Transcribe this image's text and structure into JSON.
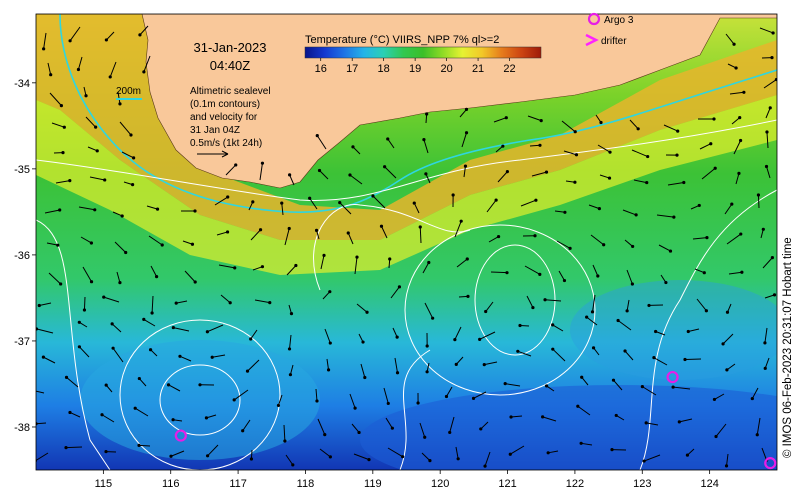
{
  "title": {
    "date": "31-Jan-2023",
    "time": "04:40Z"
  },
  "contour_label": "200m",
  "legend_text": [
    "Altimetric sealevel",
    "(0.1m contours)",
    "and velocity for",
    "31 Jan 04Z",
    "0.5m/s (1kt 24h)"
  ],
  "colorbar": {
    "title": "Temperature (°C) VIIRS_NPP 7% ql>=2",
    "ticks": [
      "16",
      "17",
      "18",
      "19",
      "20",
      "21",
      "22"
    ],
    "range": [
      15.5,
      23
    ],
    "colors": [
      "#07148a",
      "#1438d0",
      "#1e74e6",
      "#24b4e8",
      "#2ad0b4",
      "#32c850",
      "#3cbf28",
      "#8edb26",
      "#e6f232",
      "#f2c828",
      "#e67c1c",
      "#cc4412",
      "#9e1a08"
    ]
  },
  "markers": {
    "argo_label": "Argo 3",
    "drifter_label": "drifter",
    "argo_color": "#e61ee6",
    "drifter_color": "#ff22ff",
    "argo_points": [
      {
        "lon": 116.15,
        "lat": -38.1
      },
      {
        "lon": 123.45,
        "lat": -37.42
      },
      {
        "lon": 124.9,
        "lat": -38.42
      }
    ]
  },
  "axes": {
    "lon_ticks": [
      "115",
      "116",
      "117",
      "118",
      "119",
      "120",
      "121",
      "122",
      "123",
      "124"
    ],
    "lat_ticks": [
      "-34",
      "-35",
      "-36",
      "-37",
      "-38"
    ],
    "lon_range": [
      114,
      125
    ],
    "lat_range": [
      -38.5,
      -33.2
    ]
  },
  "credit": "© IMOS 06-Feb-2023 20:31:07 Hobart time",
  "colors": {
    "land": "#f9c89a",
    "coastal_warm": "#e8a830",
    "shelf_edge": "#2fd6e0",
    "contours": "#ffffff",
    "arrows": "#000000"
  }
}
